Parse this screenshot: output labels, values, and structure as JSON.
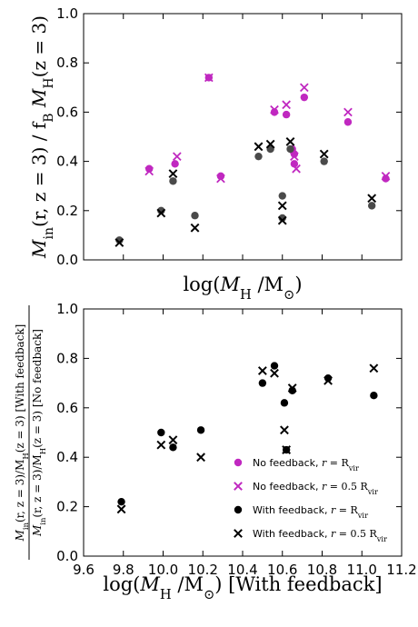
{
  "colors": {
    "no_feedback": "#c028c0",
    "with_feedback": "#4a4a4a",
    "with_feedback_bottom": "#000000"
  },
  "chart_data": [
    {
      "type": "scatter",
      "ylabel": "M_in(r, z=3) / f_B M_H(z=3)",
      "ylabel_parts": [
        "M",
        "in",
        "(r, z = 3) / f",
        "B",
        " M",
        "H",
        "(z = 3)"
      ],
      "xlabel": "log(M_H / M_⊙)",
      "xlabel_parts": [
        "log(",
        "M",
        "H",
        " /M",
        "⊙",
        ")"
      ],
      "x_range": [
        9.6,
        11.2
      ],
      "ylim": [
        0,
        1.0
      ],
      "yticks": [
        "0.0",
        "0.2",
        "0.4",
        "0.6",
        "0.8",
        "1.0"
      ],
      "xticks_labeled": false,
      "series": [
        {
          "name": "No feedback, r = R_vir",
          "marker": "circle",
          "color": "#c028c0",
          "points": [
            [
              9.93,
              0.37
            ],
            [
              10.06,
              0.39
            ],
            [
              10.23,
              0.74
            ],
            [
              10.29,
              0.34
            ],
            [
              10.56,
              0.6
            ],
            [
              10.62,
              0.59
            ],
            [
              10.65,
              0.45
            ],
            [
              10.66,
              0.43
            ],
            [
              10.66,
              0.39
            ],
            [
              10.71,
              0.66
            ],
            [
              10.93,
              0.56
            ],
            [
              11.12,
              0.33
            ]
          ]
        },
        {
          "name": "No feedback, r = 0.5 R_vir",
          "marker": "x",
          "color": "#c028c0",
          "points": [
            [
              9.93,
              0.36
            ],
            [
              10.07,
              0.42
            ],
            [
              10.23,
              0.74
            ],
            [
              10.29,
              0.33
            ],
            [
              10.56,
              0.61
            ],
            [
              10.62,
              0.63
            ],
            [
              10.66,
              0.42
            ],
            [
              10.67,
              0.37
            ],
            [
              10.71,
              0.7
            ],
            [
              10.93,
              0.6
            ],
            [
              11.12,
              0.34
            ]
          ]
        },
        {
          "name": "With feedback, r = R_vir",
          "marker": "circle",
          "color": "#4a4a4a",
          "points": [
            [
              9.78,
              0.08
            ],
            [
              9.99,
              0.2
            ],
            [
              10.05,
              0.32
            ],
            [
              10.16,
              0.18
            ],
            [
              10.48,
              0.42
            ],
            [
              10.54,
              0.45
            ],
            [
              10.6,
              0.26
            ],
            [
              10.6,
              0.17
            ],
            [
              10.64,
              0.45
            ],
            [
              10.81,
              0.4
            ],
            [
              11.05,
              0.22
            ]
          ]
        },
        {
          "name": "With feedback, r = 0.5 R_vir",
          "marker": "x",
          "color": "#000000",
          "points": [
            [
              9.78,
              0.07
            ],
            [
              9.99,
              0.19
            ],
            [
              10.05,
              0.35
            ],
            [
              10.16,
              0.13
            ],
            [
              10.48,
              0.46
            ],
            [
              10.54,
              0.47
            ],
            [
              10.6,
              0.22
            ],
            [
              10.6,
              0.16
            ],
            [
              10.64,
              0.48
            ],
            [
              10.81,
              0.43
            ],
            [
              11.05,
              0.25
            ]
          ]
        }
      ]
    },
    {
      "type": "scatter",
      "ylabel_numerator": "M_in(r, z=3)/M_H(z=3) [With feedback]",
      "ylabel_denominator": "M_in(r, z=3)/M_H(z=3) [No feedback]",
      "ylabel_num_parts": [
        "M",
        "in",
        "(r, z = 3)/M",
        "H",
        "(z = 3) [With feedback]"
      ],
      "ylabel_den_parts": [
        "M",
        "in",
        "(r, z = 3)/M",
        "H",
        "(z = 3) [No feedback]"
      ],
      "xlabel": "log(M_H / M_⊙) [With feedback]",
      "xlabel_parts": [
        "log(",
        "M",
        "H",
        " /M",
        "⊙",
        ") [With feedback]"
      ],
      "x_range": [
        9.6,
        11.2
      ],
      "ylim": [
        0,
        1.0
      ],
      "xticks": [
        "9.6",
        "9.8",
        "10.0",
        "10.2",
        "10.4",
        "10.6",
        "10.8",
        "11.0",
        "11.2"
      ],
      "yticks": [
        "0.0",
        "0.2",
        "0.4",
        "0.6",
        "0.8",
        "1.0"
      ],
      "legend_placement": "lower-right",
      "legend": [
        {
          "marker": "circle",
          "color": "#c028c0",
          "label": "No feedback, r = R_vir",
          "prefix": "No feedback, ",
          "var": "r",
          "eq": " = R",
          "sub": "vir"
        },
        {
          "marker": "x",
          "color": "#c028c0",
          "label": "No feedback, r = 0.5 R_vir",
          "prefix": "No feedback, ",
          "var": "r",
          "eq": " = 0.5 R",
          "sub": "vir"
        },
        {
          "marker": "circle",
          "color": "#000000",
          "label": "With feedback, r = R_vir",
          "prefix": "With feedback, ",
          "var": "r",
          "eq": " = R",
          "sub": "vir"
        },
        {
          "marker": "x",
          "color": "#000000",
          "label": "With feedback, r = 0.5 R_vir",
          "prefix": "With feedback, ",
          "var": "r",
          "eq": " = 0.5 R",
          "sub": "vir"
        }
      ],
      "series": [
        {
          "name": "With feedback, r = R_vir",
          "marker": "circle",
          "color": "#000000",
          "points": [
            [
              9.79,
              0.22
            ],
            [
              9.99,
              0.5
            ],
            [
              10.05,
              0.44
            ],
            [
              10.19,
              0.51
            ],
            [
              10.5,
              0.7
            ],
            [
              10.56,
              0.77
            ],
            [
              10.61,
              0.62
            ],
            [
              10.62,
              0.43
            ],
            [
              10.65,
              0.67
            ],
            [
              10.83,
              0.72
            ],
            [
              11.06,
              0.65
            ]
          ]
        },
        {
          "name": "With feedback, r = 0.5 R_vir",
          "marker": "x",
          "color": "#000000",
          "points": [
            [
              9.79,
              0.19
            ],
            [
              9.99,
              0.45
            ],
            [
              10.05,
              0.47
            ],
            [
              10.19,
              0.4
            ],
            [
              10.5,
              0.75
            ],
            [
              10.56,
              0.74
            ],
            [
              10.61,
              0.51
            ],
            [
              10.62,
              0.43
            ],
            [
              10.65,
              0.68
            ],
            [
              10.83,
              0.71
            ],
            [
              11.06,
              0.76
            ]
          ]
        }
      ]
    }
  ]
}
